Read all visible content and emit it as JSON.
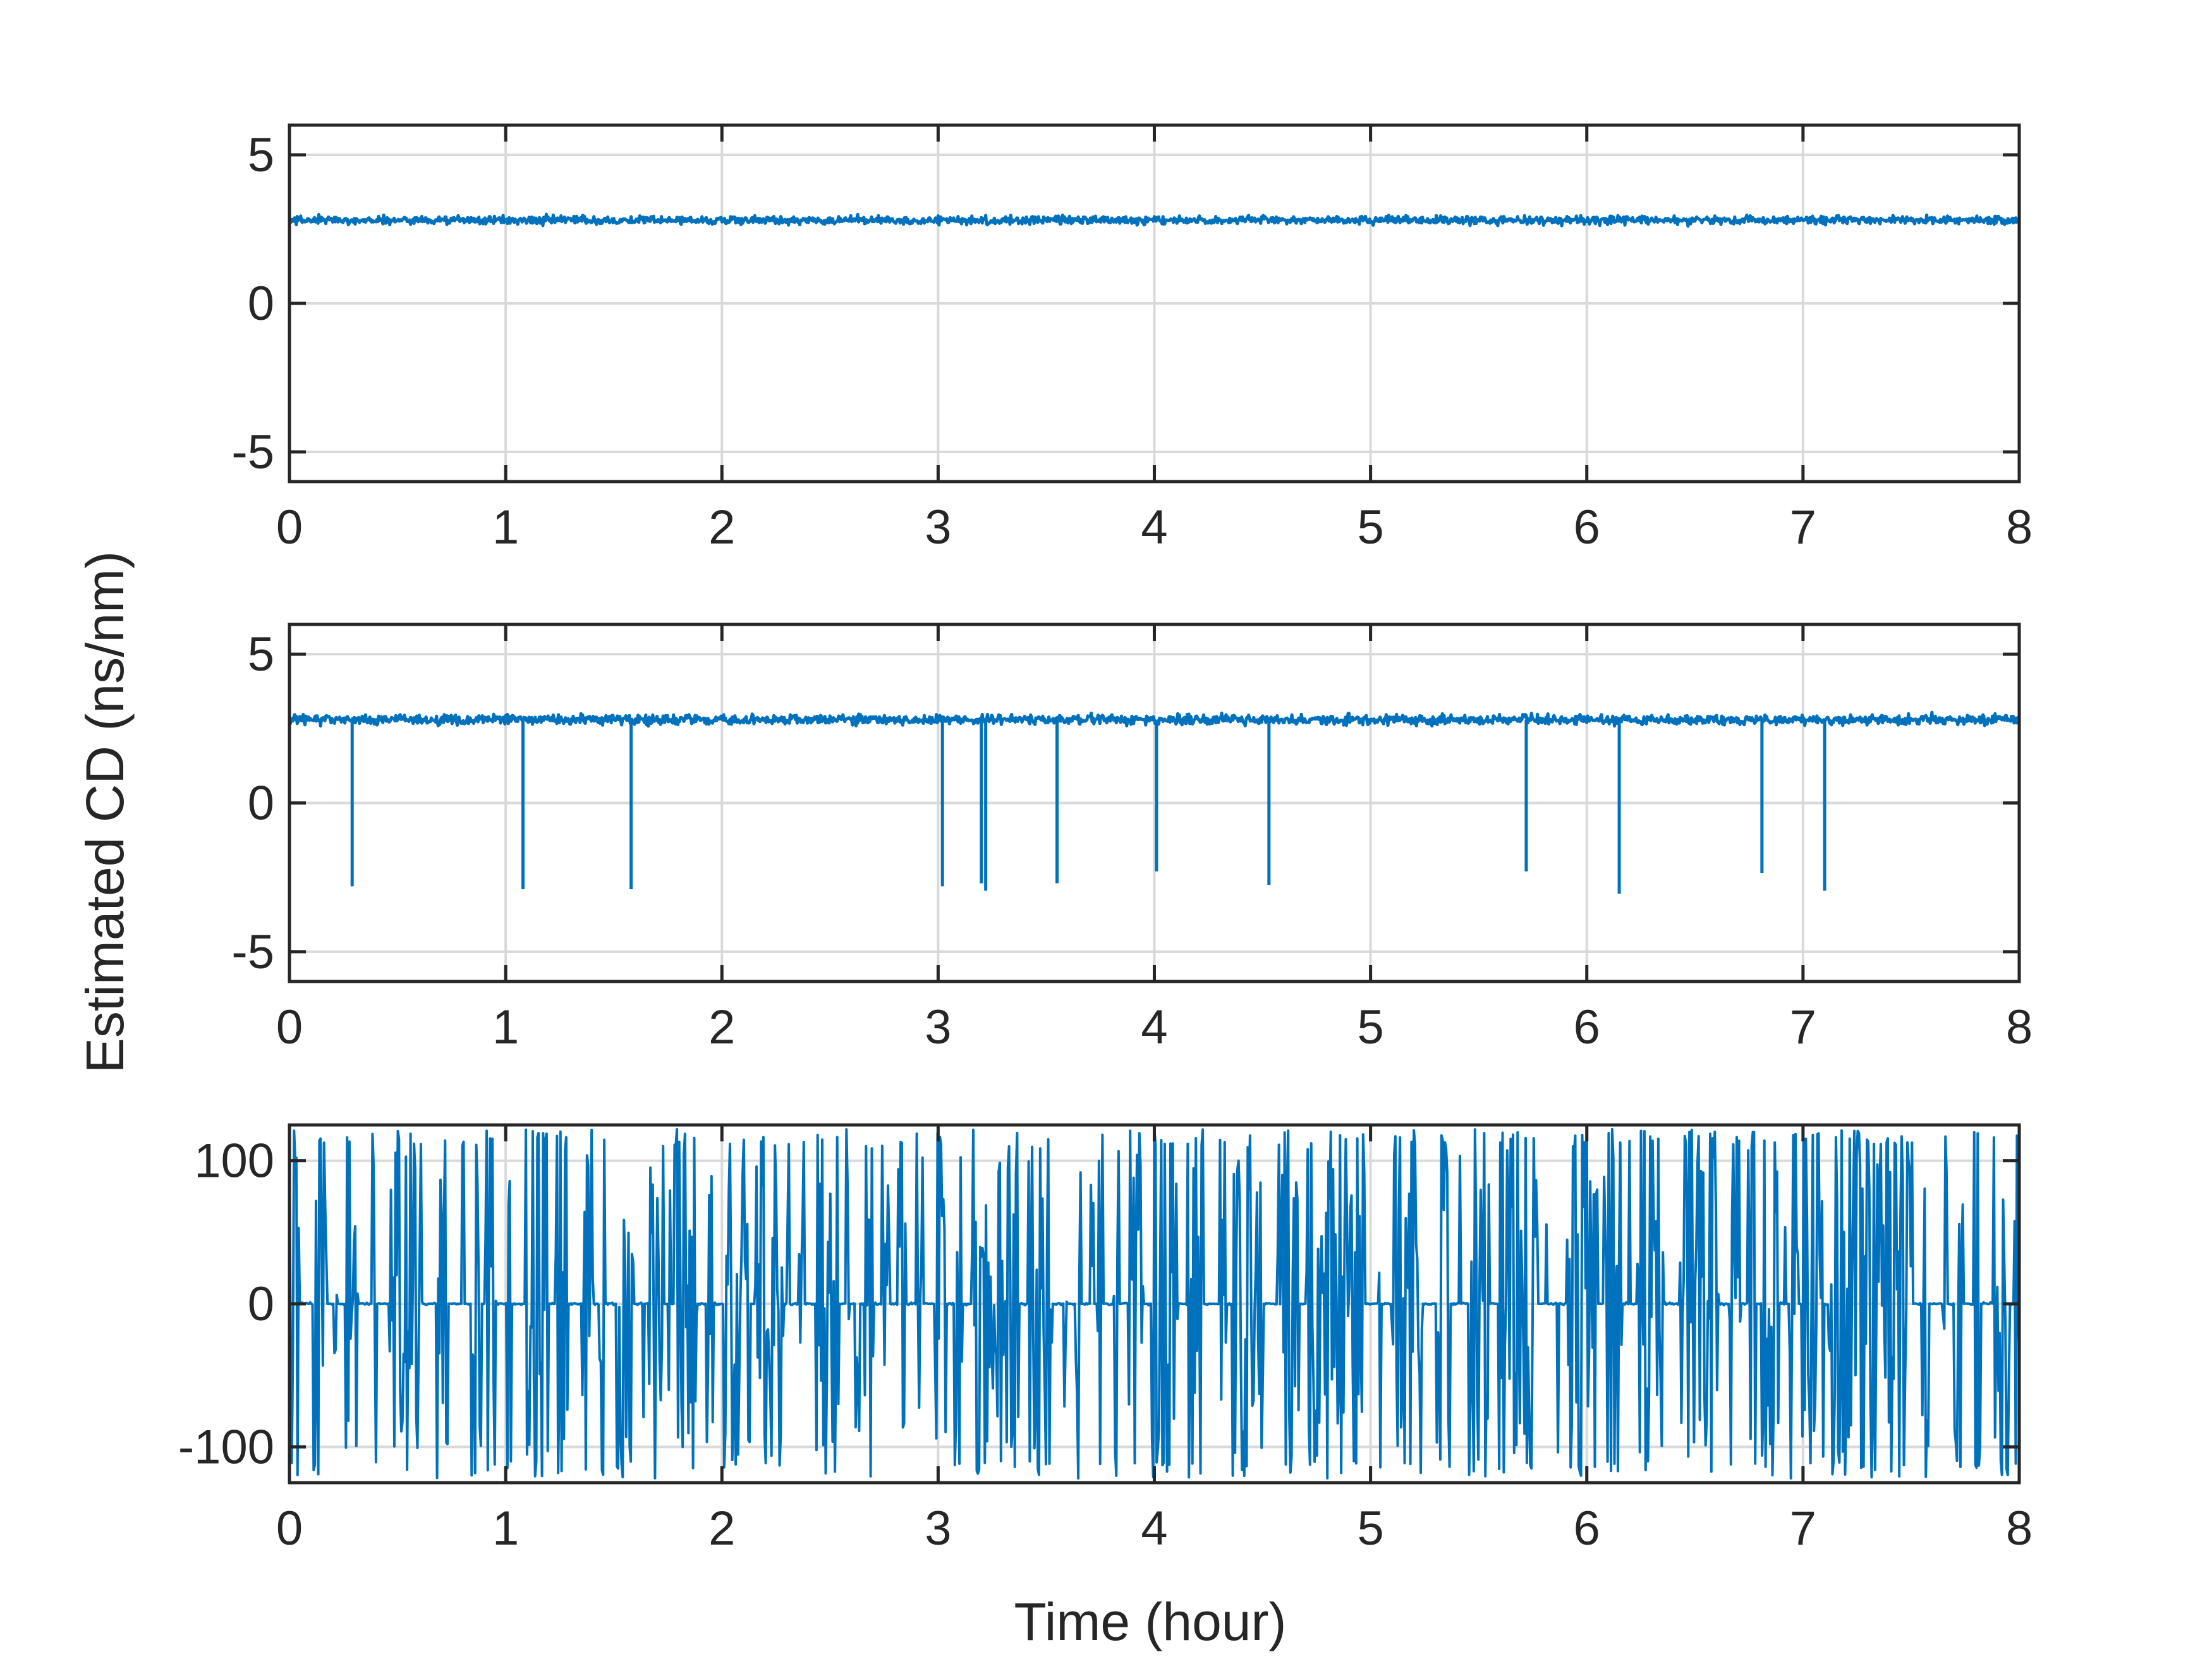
{
  "figure": {
    "ylabel": "Estimated CD (ns/nm)",
    "xlabel": "Time (hour)",
    "line_color": "#0072BD",
    "grid_color": "#d9d9d9",
    "axis_color": "#262626"
  },
  "chart_data": [
    {
      "type": "line",
      "xlim": [
        0,
        8
      ],
      "ylim": [
        -6,
        6
      ],
      "xticks": [
        0,
        1,
        2,
        3,
        4,
        5,
        6,
        7,
        8
      ],
      "xtick_labels": [
        "0",
        "1",
        "2",
        "3",
        "4",
        "5",
        "6",
        "7",
        "8"
      ],
      "yticks": [
        -5,
        0,
        5
      ],
      "ytick_labels": [
        "-5",
        "0",
        "5"
      ],
      "grid": true,
      "series": [
        {
          "baseline": 2.8,
          "noise_amplitude": 0.25,
          "points": 2000,
          "spikes": []
        }
      ]
    },
    {
      "type": "line",
      "xlim": [
        0,
        8
      ],
      "ylim": [
        -6,
        6
      ],
      "xticks": [
        0,
        1,
        2,
        3,
        4,
        5,
        6,
        7,
        8
      ],
      "xtick_labels": [
        "0",
        "1",
        "2",
        "3",
        "4",
        "5",
        "6",
        "7",
        "8"
      ],
      "yticks": [
        -5,
        0,
        5
      ],
      "ytick_labels": [
        "-5",
        "0",
        "5"
      ],
      "grid": true,
      "series": [
        {
          "baseline": 2.8,
          "noise_amplitude": 0.3,
          "points": 2000,
          "spikes": [
            {
              "x": 0.29,
              "y": -2.8
            },
            {
              "x": 1.08,
              "y": -2.9
            },
            {
              "x": 1.58,
              "y": -2.9
            },
            {
              "x": 3.02,
              "y": -2.8
            },
            {
              "x": 3.2,
              "y": -2.7
            },
            {
              "x": 3.22,
              "y": -2.95
            },
            {
              "x": 3.55,
              "y": -2.7
            },
            {
              "x": 4.01,
              "y": -2.3
            },
            {
              "x": 4.53,
              "y": -2.75
            },
            {
              "x": 5.72,
              "y": -2.3
            },
            {
              "x": 6.15,
              "y": -3.05
            },
            {
              "x": 6.81,
              "y": -2.35
            },
            {
              "x": 7.1,
              "y": -2.95
            }
          ]
        }
      ]
    },
    {
      "type": "line",
      "xlim": [
        0,
        8
      ],
      "ylim": [
        -125,
        125
      ],
      "xticks": [
        0,
        1,
        2,
        3,
        4,
        5,
        6,
        7,
        8
      ],
      "xtick_labels": [
        "0",
        "1",
        "2",
        "3",
        "4",
        "5",
        "6",
        "7",
        "8"
      ],
      "yticks": [
        -100,
        0,
        100
      ],
      "ytick_labels": [
        "-100",
        "0",
        "100"
      ],
      "grid": true,
      "series": [
        {
          "baseline": 0,
          "spike_amplitude": 122,
          "points": 1500
        }
      ]
    }
  ]
}
